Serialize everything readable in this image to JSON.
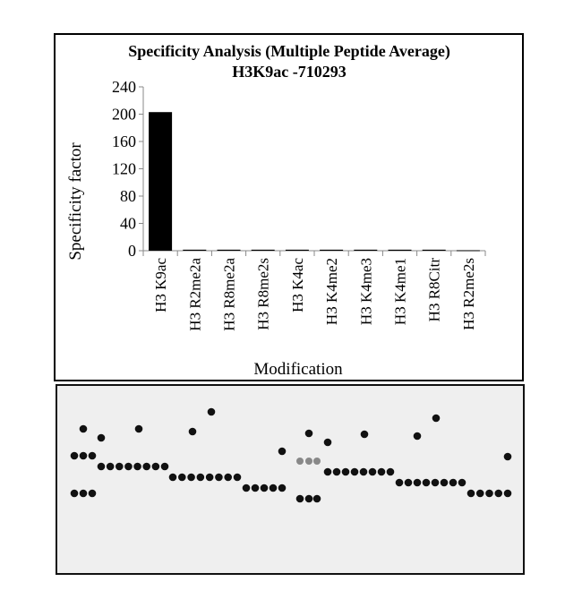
{
  "chart_data": {
    "type": "bar",
    "title": "Specificity Analysis  (Multiple Peptide Average)",
    "subtitle": "H3K9ac -710293",
    "xlabel": "Modification",
    "ylabel": "Specificity factor",
    "ylim": [
      0,
      240
    ],
    "yticks": [
      "0",
      "40",
      "80",
      "120",
      "160",
      "200",
      "240"
    ],
    "categories": [
      "H3 K9ac",
      "H3 R2me2a",
      "H3 R8me2a",
      "H3 R8me2s",
      "H3 K4ac",
      "H3 K4me2",
      "H3 K4me3",
      "H3 K4me1",
      "H3 R8Citr",
      "H3 R2me2s"
    ],
    "values": [
      203,
      1.5,
      1.5,
      1.5,
      1.5,
      1.5,
      1.5,
      1.5,
      1.5,
      0.7
    ],
    "bar_color": "#000000",
    "grid": false,
    "legend": "none"
  },
  "blot": {
    "background": "#efefef",
    "spot_color": "#111111"
  }
}
